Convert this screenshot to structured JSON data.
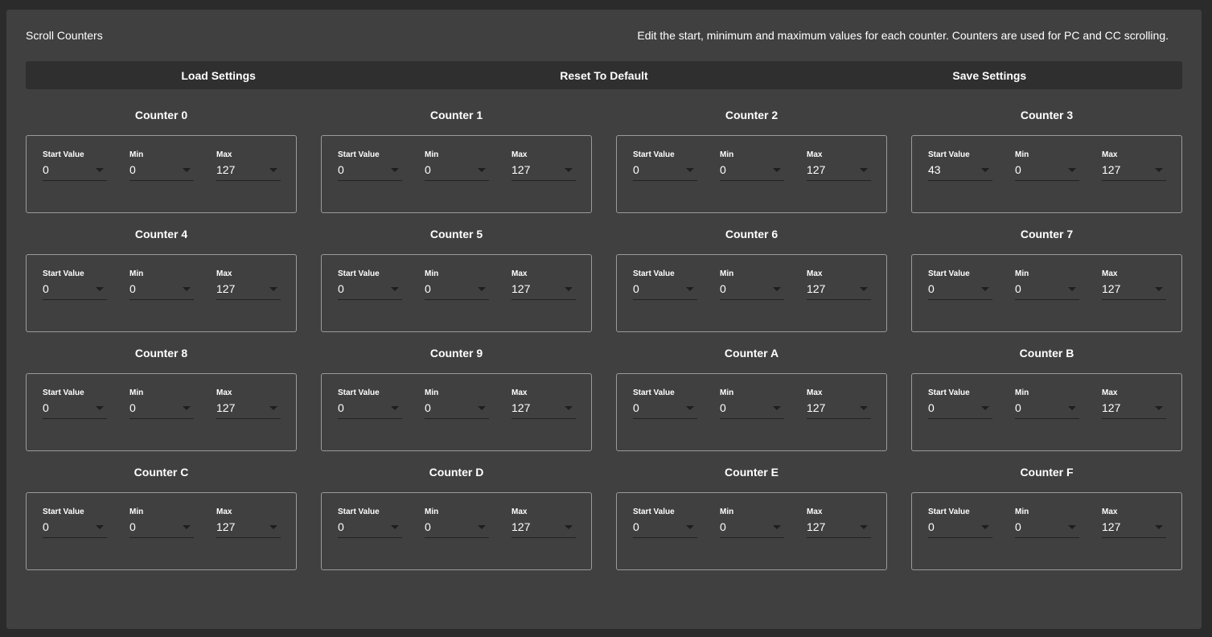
{
  "header": {
    "title": "Scroll Counters",
    "description": "Edit the start, minimum and maximum values for each counter. Counters are used for PC and CC scrolling."
  },
  "toolbar": {
    "load_label": "Load Settings",
    "reset_label": "Reset To Default",
    "save_label": "Save Settings"
  },
  "field_labels": {
    "start": "Start Value",
    "min": "Min",
    "max": "Max"
  },
  "counters": [
    {
      "name": "Counter 0",
      "start": "0",
      "min": "0",
      "max": "127"
    },
    {
      "name": "Counter 1",
      "start": "0",
      "min": "0",
      "max": "127"
    },
    {
      "name": "Counter 2",
      "start": "0",
      "min": "0",
      "max": "127"
    },
    {
      "name": "Counter 3",
      "start": "43",
      "min": "0",
      "max": "127"
    },
    {
      "name": "Counter 4",
      "start": "0",
      "min": "0",
      "max": "127"
    },
    {
      "name": "Counter 5",
      "start": "0",
      "min": "0",
      "max": "127"
    },
    {
      "name": "Counter 6",
      "start": "0",
      "min": "0",
      "max": "127"
    },
    {
      "name": "Counter 7",
      "start": "0",
      "min": "0",
      "max": "127"
    },
    {
      "name": "Counter 8",
      "start": "0",
      "min": "0",
      "max": "127"
    },
    {
      "name": "Counter 9",
      "start": "0",
      "min": "0",
      "max": "127"
    },
    {
      "name": "Counter A",
      "start": "0",
      "min": "0",
      "max": "127"
    },
    {
      "name": "Counter B",
      "start": "0",
      "min": "0",
      "max": "127"
    },
    {
      "name": "Counter C",
      "start": "0",
      "min": "0",
      "max": "127"
    },
    {
      "name": "Counter D",
      "start": "0",
      "min": "0",
      "max": "127"
    },
    {
      "name": "Counter E",
      "start": "0",
      "min": "0",
      "max": "127"
    },
    {
      "name": "Counter F",
      "start": "0",
      "min": "0",
      "max": "127"
    }
  ]
}
